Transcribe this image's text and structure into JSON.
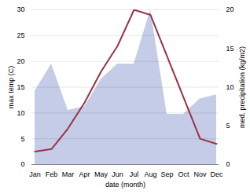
{
  "chart_data": {
    "type": "line",
    "categories": [
      "Jan",
      "Feb",
      "Mar",
      "Apr",
      "May",
      "Jun",
      "Jul",
      "Aug",
      "Sep",
      "Oct",
      "Nov",
      "Dec"
    ],
    "series": [
      {
        "type": "area",
        "color": "#c5cce8",
        "axis": "y2",
        "values": [
          9.5,
          13.0,
          7.0,
          7.5,
          11.0,
          13.0,
          13.0,
          20.0,
          6.5,
          6.5,
          8.5,
          9.0
        ]
      },
      {
        "type": "line",
        "color": "#993344",
        "values": [
          2.5,
          3.0,
          7.0,
          12.0,
          18.0,
          23.0,
          30.0,
          29.0,
          21.0,
          13.0,
          5.0,
          4.0
        ]
      }
    ],
    "x_label": "date (month)",
    "y_label": "max temp (C)",
    "y2_label": "med. precipitation (kg/m2)",
    "ylim": [
      0,
      30
    ],
    "yticks": [
      0,
      5,
      10,
      15,
      20,
      25,
      30
    ],
    "y2lim": [
      0,
      20
    ],
    "y2ticks": [
      0,
      5,
      10,
      15,
      20
    ],
    "grid": true
  }
}
